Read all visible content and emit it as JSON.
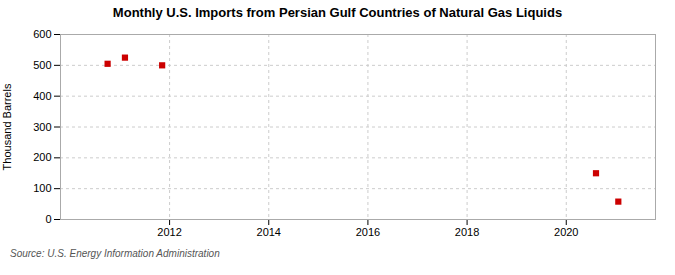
{
  "chart_data": {
    "type": "scatter",
    "title": "Monthly U.S. Imports from Persian Gulf Countries of Natural Gas Liquids",
    "ylabel": "Thousand Barrels",
    "source": "Source: U.S. Energy Information Administration",
    "x": [
      2010.75,
      2011.1,
      2011.85,
      2020.6,
      2021.05
    ],
    "values": [
      505,
      525,
      500,
      150,
      58
    ],
    "color": "#cc0000",
    "marker": "square",
    "xlim": [
      2009.8,
      2021.8
    ],
    "ylim": [
      0,
      600
    ],
    "xticks": [
      2012,
      2014,
      2016,
      2018,
      2020
    ],
    "yticks": [
      0,
      100,
      200,
      300,
      400,
      500,
      600
    ],
    "grid": true
  }
}
